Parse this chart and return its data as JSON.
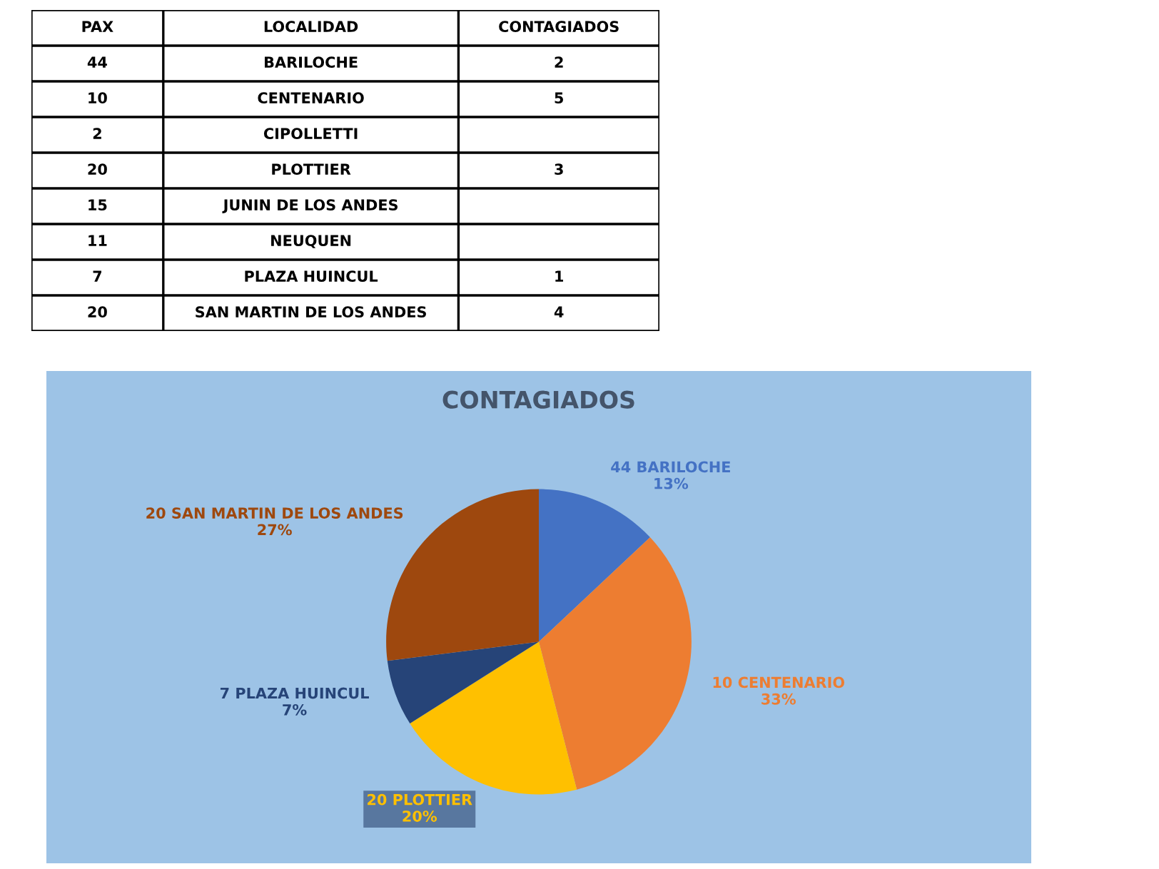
{
  "chart_data": [
    {
      "type": "other",
      "xlabel": "LOCALIDAD",
      "data_labels": true,
      "categories": [
        "BARILOCHE",
        "CENTENARIO",
        "CIPOLLETTI",
        "PLOTTIER",
        "JUNIN DE LOS ANDES",
        "NEUQUEN",
        "PLAZA HUINCUL",
        "SAN MARTIN DE LOS ANDES"
      ],
      "series": [
        {
          "name": "PAX",
          "values": [
            44,
            10,
            2,
            20,
            15,
            11,
            7,
            20
          ]
        },
        {
          "name": "CONTAGIADOS",
          "values": [
            2,
            5,
            null,
            3,
            null,
            null,
            1,
            4
          ]
        }
      ]
    },
    {
      "type": "pie",
      "title": "CONTAGIADOS",
      "categories": [
        "44 BARILOCHE",
        "10 CENTENARIO",
        "20 PLOTTIER",
        "7 PLAZA HUINCUL",
        "20 SAN MARTIN DE LOS ANDES"
      ],
      "values": [
        13,
        33,
        20,
        7,
        27
      ],
      "value_labels": [
        "13%",
        "33%",
        "20%",
        "7%",
        "27%"
      ],
      "colors": [
        "#4472c4",
        "#ed7d31",
        "#ffc000",
        "#264478",
        "#9e480e"
      ]
    }
  ]
}
